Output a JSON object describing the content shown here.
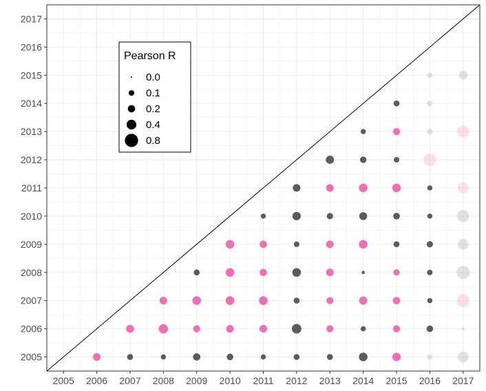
{
  "chart_data": {
    "type": "scatter",
    "title": "",
    "xlabel": "",
    "ylabel": "",
    "x_ticks": [
      2005,
      2006,
      2007,
      2008,
      2009,
      2010,
      2011,
      2012,
      2013,
      2014,
      2015,
      2016,
      2017
    ],
    "y_ticks": [
      2005,
      2006,
      2007,
      2008,
      2009,
      2010,
      2011,
      2012,
      2013,
      2014,
      2015,
      2016,
      2017
    ],
    "xlim": [
      2004.5,
      2017.5
    ],
    "ylim": [
      2004.5,
      2017.5
    ],
    "grid": true,
    "diagonal_line": true,
    "colors": {
      "pink": "#f06fb4",
      "gray": "#5c5c5c",
      "faded_gray": "#bdbdbd",
      "faded_pink": "#f7b6d6",
      "grid": "#ebebeb",
      "axis": "#333333"
    },
    "legend": {
      "title": "Pearson R",
      "placement": "top-left",
      "items": [
        {
          "label": "0.0",
          "r": 0.0
        },
        {
          "label": "0.1",
          "r": 0.1
        },
        {
          "label": "0.2",
          "r": 0.2
        },
        {
          "label": "0.4",
          "r": 0.4
        },
        {
          "label": "0.8",
          "r": 0.8
        }
      ]
    },
    "points": [
      {
        "x": 2006,
        "y": 2005,
        "r": 0.22,
        "color": "pink"
      },
      {
        "x": 2007,
        "y": 2005,
        "r": 0.12,
        "color": "gray"
      },
      {
        "x": 2007,
        "y": 2006,
        "r": 0.24,
        "color": "pink"
      },
      {
        "x": 2008,
        "y": 2005,
        "r": 0.08,
        "color": "gray"
      },
      {
        "x": 2008,
        "y": 2006,
        "r": 0.35,
        "color": "pink"
      },
      {
        "x": 2008,
        "y": 2007,
        "r": 0.22,
        "color": "pink"
      },
      {
        "x": 2009,
        "y": 2005,
        "r": 0.2,
        "color": "gray"
      },
      {
        "x": 2009,
        "y": 2006,
        "r": 0.18,
        "color": "pink"
      },
      {
        "x": 2009,
        "y": 2007,
        "r": 0.3,
        "color": "pink"
      },
      {
        "x": 2009,
        "y": 2008,
        "r": 0.12,
        "color": "gray"
      },
      {
        "x": 2010,
        "y": 2005,
        "r": 0.15,
        "color": "gray"
      },
      {
        "x": 2010,
        "y": 2006,
        "r": 0.22,
        "color": "pink"
      },
      {
        "x": 2010,
        "y": 2007,
        "r": 0.3,
        "color": "pink"
      },
      {
        "x": 2010,
        "y": 2008,
        "r": 0.3,
        "color": "pink"
      },
      {
        "x": 2010,
        "y": 2009,
        "r": 0.3,
        "color": "pink"
      },
      {
        "x": 2011,
        "y": 2005,
        "r": 0.08,
        "color": "gray"
      },
      {
        "x": 2011,
        "y": 2006,
        "r": 0.22,
        "color": "pink"
      },
      {
        "x": 2011,
        "y": 2007,
        "r": 0.3,
        "color": "pink"
      },
      {
        "x": 2011,
        "y": 2008,
        "r": 0.2,
        "color": "pink"
      },
      {
        "x": 2011,
        "y": 2009,
        "r": 0.2,
        "color": "pink"
      },
      {
        "x": 2011,
        "y": 2010,
        "r": 0.08,
        "color": "gray"
      },
      {
        "x": 2012,
        "y": 2005,
        "r": 0.12,
        "color": "gray"
      },
      {
        "x": 2012,
        "y": 2006,
        "r": 0.38,
        "color": "gray"
      },
      {
        "x": 2012,
        "y": 2007,
        "r": 0.12,
        "color": "gray"
      },
      {
        "x": 2012,
        "y": 2008,
        "r": 0.3,
        "color": "gray"
      },
      {
        "x": 2012,
        "y": 2009,
        "r": 0.1,
        "color": "gray"
      },
      {
        "x": 2012,
        "y": 2010,
        "r": 0.28,
        "color": "gray"
      },
      {
        "x": 2012,
        "y": 2011,
        "r": 0.22,
        "color": "gray"
      },
      {
        "x": 2013,
        "y": 2005,
        "r": 0.12,
        "color": "gray"
      },
      {
        "x": 2013,
        "y": 2006,
        "r": 0.18,
        "color": "pink"
      },
      {
        "x": 2013,
        "y": 2007,
        "r": 0.18,
        "color": "pink"
      },
      {
        "x": 2013,
        "y": 2008,
        "r": 0.22,
        "color": "pink"
      },
      {
        "x": 2013,
        "y": 2009,
        "r": 0.22,
        "color": "pink"
      },
      {
        "x": 2013,
        "y": 2010,
        "r": 0.14,
        "color": "gray"
      },
      {
        "x": 2013,
        "y": 2011,
        "r": 0.22,
        "color": "pink"
      },
      {
        "x": 2013,
        "y": 2012,
        "r": 0.26,
        "color": "gray"
      },
      {
        "x": 2014,
        "y": 2005,
        "r": 0.3,
        "color": "gray"
      },
      {
        "x": 2014,
        "y": 2006,
        "r": 0.08,
        "color": "gray"
      },
      {
        "x": 2014,
        "y": 2007,
        "r": 0.26,
        "color": "pink"
      },
      {
        "x": 2014,
        "y": 2008,
        "r": 0.02,
        "color": "gray"
      },
      {
        "x": 2014,
        "y": 2009,
        "r": 0.3,
        "color": "pink"
      },
      {
        "x": 2014,
        "y": 2010,
        "r": 0.24,
        "color": "gray"
      },
      {
        "x": 2014,
        "y": 2011,
        "r": 0.3,
        "color": "pink"
      },
      {
        "x": 2014,
        "y": 2012,
        "r": 0.15,
        "color": "gray"
      },
      {
        "x": 2014,
        "y": 2013,
        "r": 0.08,
        "color": "gray"
      },
      {
        "x": 2015,
        "y": 2005,
        "r": 0.28,
        "color": "pink"
      },
      {
        "x": 2015,
        "y": 2006,
        "r": 0.18,
        "color": "pink"
      },
      {
        "x": 2015,
        "y": 2007,
        "r": 0.2,
        "color": "pink"
      },
      {
        "x": 2015,
        "y": 2008,
        "r": 0.14,
        "color": "pink"
      },
      {
        "x": 2015,
        "y": 2009,
        "r": 0.12,
        "color": "gray"
      },
      {
        "x": 2015,
        "y": 2010,
        "r": 0.16,
        "color": "gray"
      },
      {
        "x": 2015,
        "y": 2011,
        "r": 0.3,
        "color": "pink"
      },
      {
        "x": 2015,
        "y": 2012,
        "r": 0.1,
        "color": "gray"
      },
      {
        "x": 2015,
        "y": 2013,
        "r": 0.18,
        "color": "pink"
      },
      {
        "x": 2015,
        "y": 2014,
        "r": 0.12,
        "color": "gray"
      },
      {
        "x": 2016,
        "y": 2005,
        "r": 0.1,
        "color": "faded_gray"
      },
      {
        "x": 2016,
        "y": 2006,
        "r": 0.15,
        "color": "gray"
      },
      {
        "x": 2016,
        "y": 2007,
        "r": 0.08,
        "color": "gray"
      },
      {
        "x": 2016,
        "y": 2008,
        "r": 0.1,
        "color": "gray"
      },
      {
        "x": 2016,
        "y": 2009,
        "r": 0.14,
        "color": "gray"
      },
      {
        "x": 2016,
        "y": 2010,
        "r": 0.08,
        "color": "gray"
      },
      {
        "x": 2016,
        "y": 2011,
        "r": 0.08,
        "color": "gray"
      },
      {
        "x": 2016,
        "y": 2012,
        "r": 0.7,
        "color": "faded_pink"
      },
      {
        "x": 2016,
        "y": 2013,
        "r": 0.1,
        "color": "faded_gray"
      },
      {
        "x": 2016,
        "y": 2014,
        "r": 0.1,
        "color": "faded_gray"
      },
      {
        "x": 2016,
        "y": 2015,
        "r": 0.08,
        "color": "faded_gray"
      },
      {
        "x": 2017,
        "y": 2005,
        "r": 0.5,
        "color": "faded_gray"
      },
      {
        "x": 2017,
        "y": 2006,
        "r": 0.02,
        "color": "faded_gray"
      },
      {
        "x": 2017,
        "y": 2007,
        "r": 0.7,
        "color": "faded_pink"
      },
      {
        "x": 2017,
        "y": 2008,
        "r": 0.75,
        "color": "faded_gray"
      },
      {
        "x": 2017,
        "y": 2009,
        "r": 0.5,
        "color": "faded_gray"
      },
      {
        "x": 2017,
        "y": 2010,
        "r": 0.65,
        "color": "faded_gray"
      },
      {
        "x": 2017,
        "y": 2011,
        "r": 0.5,
        "color": "faded_pink"
      },
      {
        "x": 2017,
        "y": 2013,
        "r": 0.65,
        "color": "faded_pink"
      },
      {
        "x": 2017,
        "y": 2015,
        "r": 0.3,
        "color": "faded_gray"
      }
    ]
  }
}
